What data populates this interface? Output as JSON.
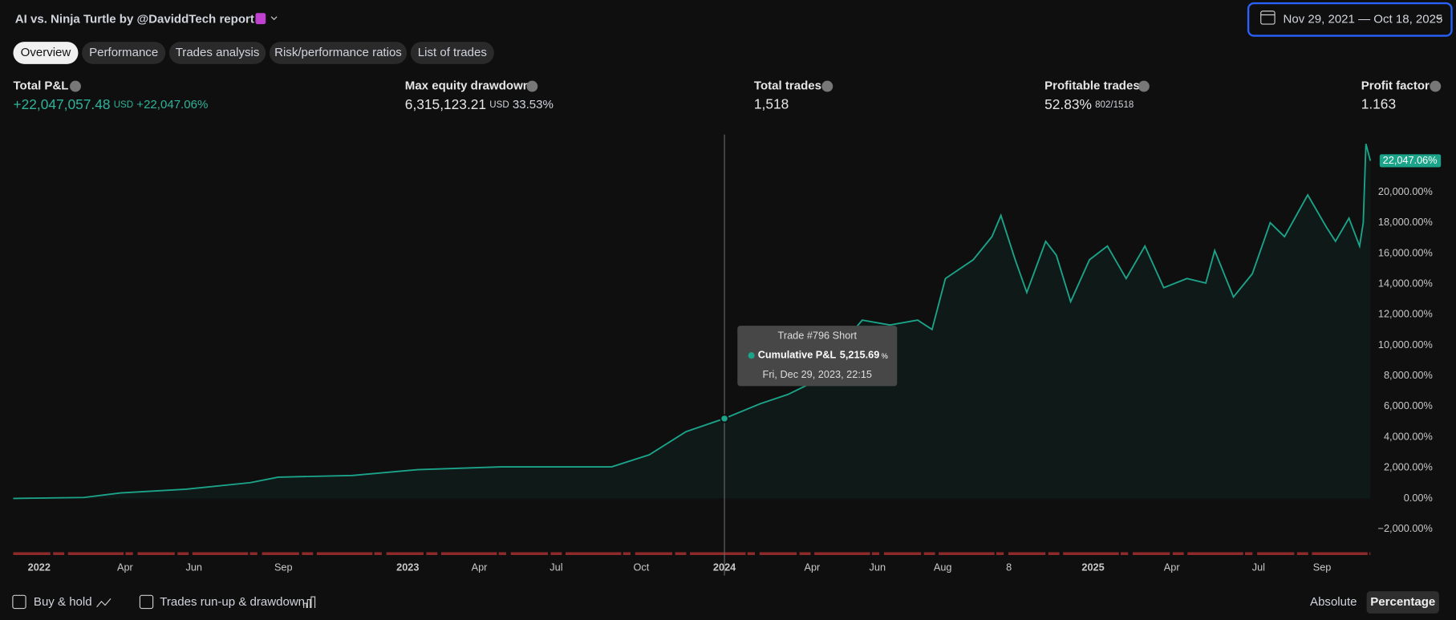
{
  "header": {
    "title": "AI vs. Ninja Turtle by @DaviddTech",
    "title_suffix": "report",
    "date_range": "Nov 29, 2021 — Oct 18, 2025"
  },
  "tabs": [
    "Overview",
    "Performance",
    "Trades analysis",
    "Risk/performance ratios",
    "List of trades"
  ],
  "metrics": [
    {
      "label": "Total P&L",
      "value": "+22,047,057.48",
      "unit": "USD",
      "extra": "+22,047.06%"
    },
    {
      "label": "Max equity drawdown",
      "value": "6,315,123.21",
      "unit": "USD",
      "extra": "33.53%"
    },
    {
      "label": "Total trades",
      "value": "1,518"
    },
    {
      "label": "Profitable trades",
      "value": "52.83%",
      "extra": "802/1518"
    },
    {
      "label": "Profit factor",
      "value": "1.163"
    }
  ],
  "chart_data": {
    "type": "line",
    "x": [
      1,
      80,
      121,
      194,
      266,
      297,
      380,
      453,
      546,
      608,
      670,
      712,
      753,
      796,
      836,
      867,
      888,
      919,
      950,
      981,
      1012,
      1028,
      1043,
      1074,
      1095,
      1105,
      1121,
      1134,
      1155,
      1167,
      1183,
      1204,
      1224,
      1245,
      1266,
      1287,
      1313,
      1334,
      1344,
      1365,
      1386,
      1406,
      1422,
      1448,
      1469,
      1479,
      1494,
      1506,
      1510,
      1513,
      1518
    ],
    "series": [
      {
        "name": "Cumulative P&L",
        "color": "#1ba48a",
        "values": [
          0,
          60,
          360,
          600,
          1030,
          1390,
          1500,
          1880,
          2060,
          2060,
          2060,
          2850,
          4360,
          5215.69,
          6180,
          6790,
          7390,
          9500,
          11640,
          11330,
          11640,
          11030,
          14360,
          15580,
          17090,
          18480,
          15580,
          13450,
          16790,
          15880,
          12850,
          15580,
          16480,
          14360,
          16480,
          13760,
          14360,
          14060,
          16180,
          13150,
          14670,
          18000,
          17090,
          19820,
          17700,
          16790,
          18300,
          16480,
          18000,
          23150,
          22047.06
        ],
        "value_labels": [
          null,
          null,
          null,
          null,
          null,
          null,
          null,
          null,
          null,
          null,
          null,
          null,
          null,
          null,
          null,
          null,
          null,
          null,
          null,
          null,
          null,
          null,
          null,
          null,
          null,
          null,
          null,
          null,
          null,
          null,
          null,
          null,
          null,
          null,
          null,
          null,
          null,
          null,
          null,
          null,
          null,
          null,
          null,
          null,
          null,
          null,
          null,
          null,
          null,
          null,
          "22,047.06%"
        ]
      }
    ],
    "xlim": [
      1,
      1518
    ],
    "xticks": [
      {
        "value": 30,
        "label": "2022"
      },
      {
        "value": 126,
        "label": "Apr"
      },
      {
        "value": 203,
        "label": "Jun"
      },
      {
        "value": 303,
        "label": "Sep"
      },
      {
        "value": 442,
        "label": "2023"
      },
      {
        "value": 522,
        "label": "Apr"
      },
      {
        "value": 608,
        "label": "Jul"
      },
      {
        "value": 703,
        "label": "Oct"
      },
      {
        "value": 796,
        "label": "2024"
      },
      {
        "value": 894,
        "label": "Apr"
      },
      {
        "value": 967,
        "label": "Jun"
      },
      {
        "value": 1040,
        "label": "Aug"
      },
      {
        "value": 1114,
        "label": "8"
      },
      {
        "value": 1208,
        "label": "2025"
      },
      {
        "value": 1296,
        "label": "Apr"
      },
      {
        "value": 1393,
        "label": "Jul"
      },
      {
        "value": 1464,
        "label": "Sep"
      }
    ],
    "ylim": [
      -3818,
      23758
    ],
    "yticks": [
      {
        "value": -2000,
        "label": "−2,000.00%"
      },
      {
        "value": 0,
        "label": "0.00%"
      },
      {
        "value": 2000,
        "label": "2,000.00%"
      },
      {
        "value": 4000,
        "label": "4,000.00%"
      },
      {
        "value": 6000,
        "label": "6,000.00%"
      },
      {
        "value": 8000,
        "label": "8,000.00%"
      },
      {
        "value": 10000,
        "label": "10,000.00%"
      },
      {
        "value": 12000,
        "label": "12,000.00%"
      },
      {
        "value": 14000,
        "label": "14,000.00%"
      },
      {
        "value": 16000,
        "label": "16,000.00%"
      },
      {
        "value": 18000,
        "label": "18,000.00%"
      },
      {
        "value": 20000,
        "label": "20,000.00%"
      }
    ],
    "tooltip": {
      "title": "Trade #796 Short",
      "x": 796,
      "value": 5215.69,
      "label": "5,215.69",
      "unit": "%",
      "date": "Fri, Dec 29, 2023, 22:15"
    }
  },
  "footer": {
    "buy_hold": "Buy & hold",
    "runup": "Trades run-up & drawdown",
    "absolute": "Absolute",
    "percentage": "Percentage"
  }
}
